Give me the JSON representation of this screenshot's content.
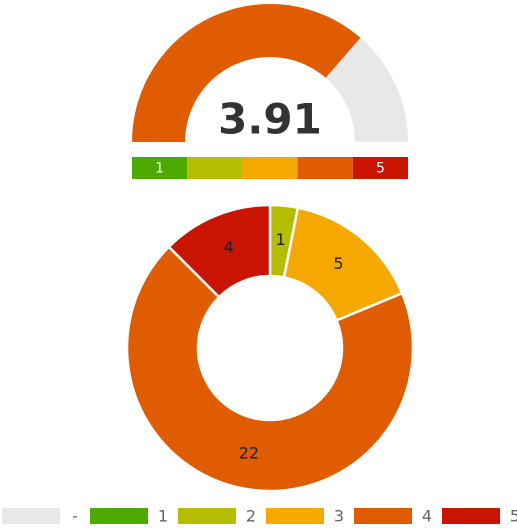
{
  "chart_data": [
    {
      "type": "gauge",
      "value": 3.91,
      "range": [
        1,
        5
      ],
      "color": "#e05c00",
      "track_color": "#e8e8e8",
      "scale_colors": [
        "#4caa00",
        "#b5bd00",
        "#f5a800",
        "#e05c00",
        "#c81400"
      ]
    },
    {
      "type": "pie",
      "categories": [
        "-",
        "1",
        "2",
        "3",
        "4",
        "5"
      ],
      "values": [
        0,
        0,
        1,
        5,
        22,
        4
      ],
      "colors": [
        "#e8e8e8",
        "#4caa00",
        "#b5bd00",
        "#f5a800",
        "#e05c00",
        "#c81400"
      ],
      "legend": "bottom"
    }
  ]
}
